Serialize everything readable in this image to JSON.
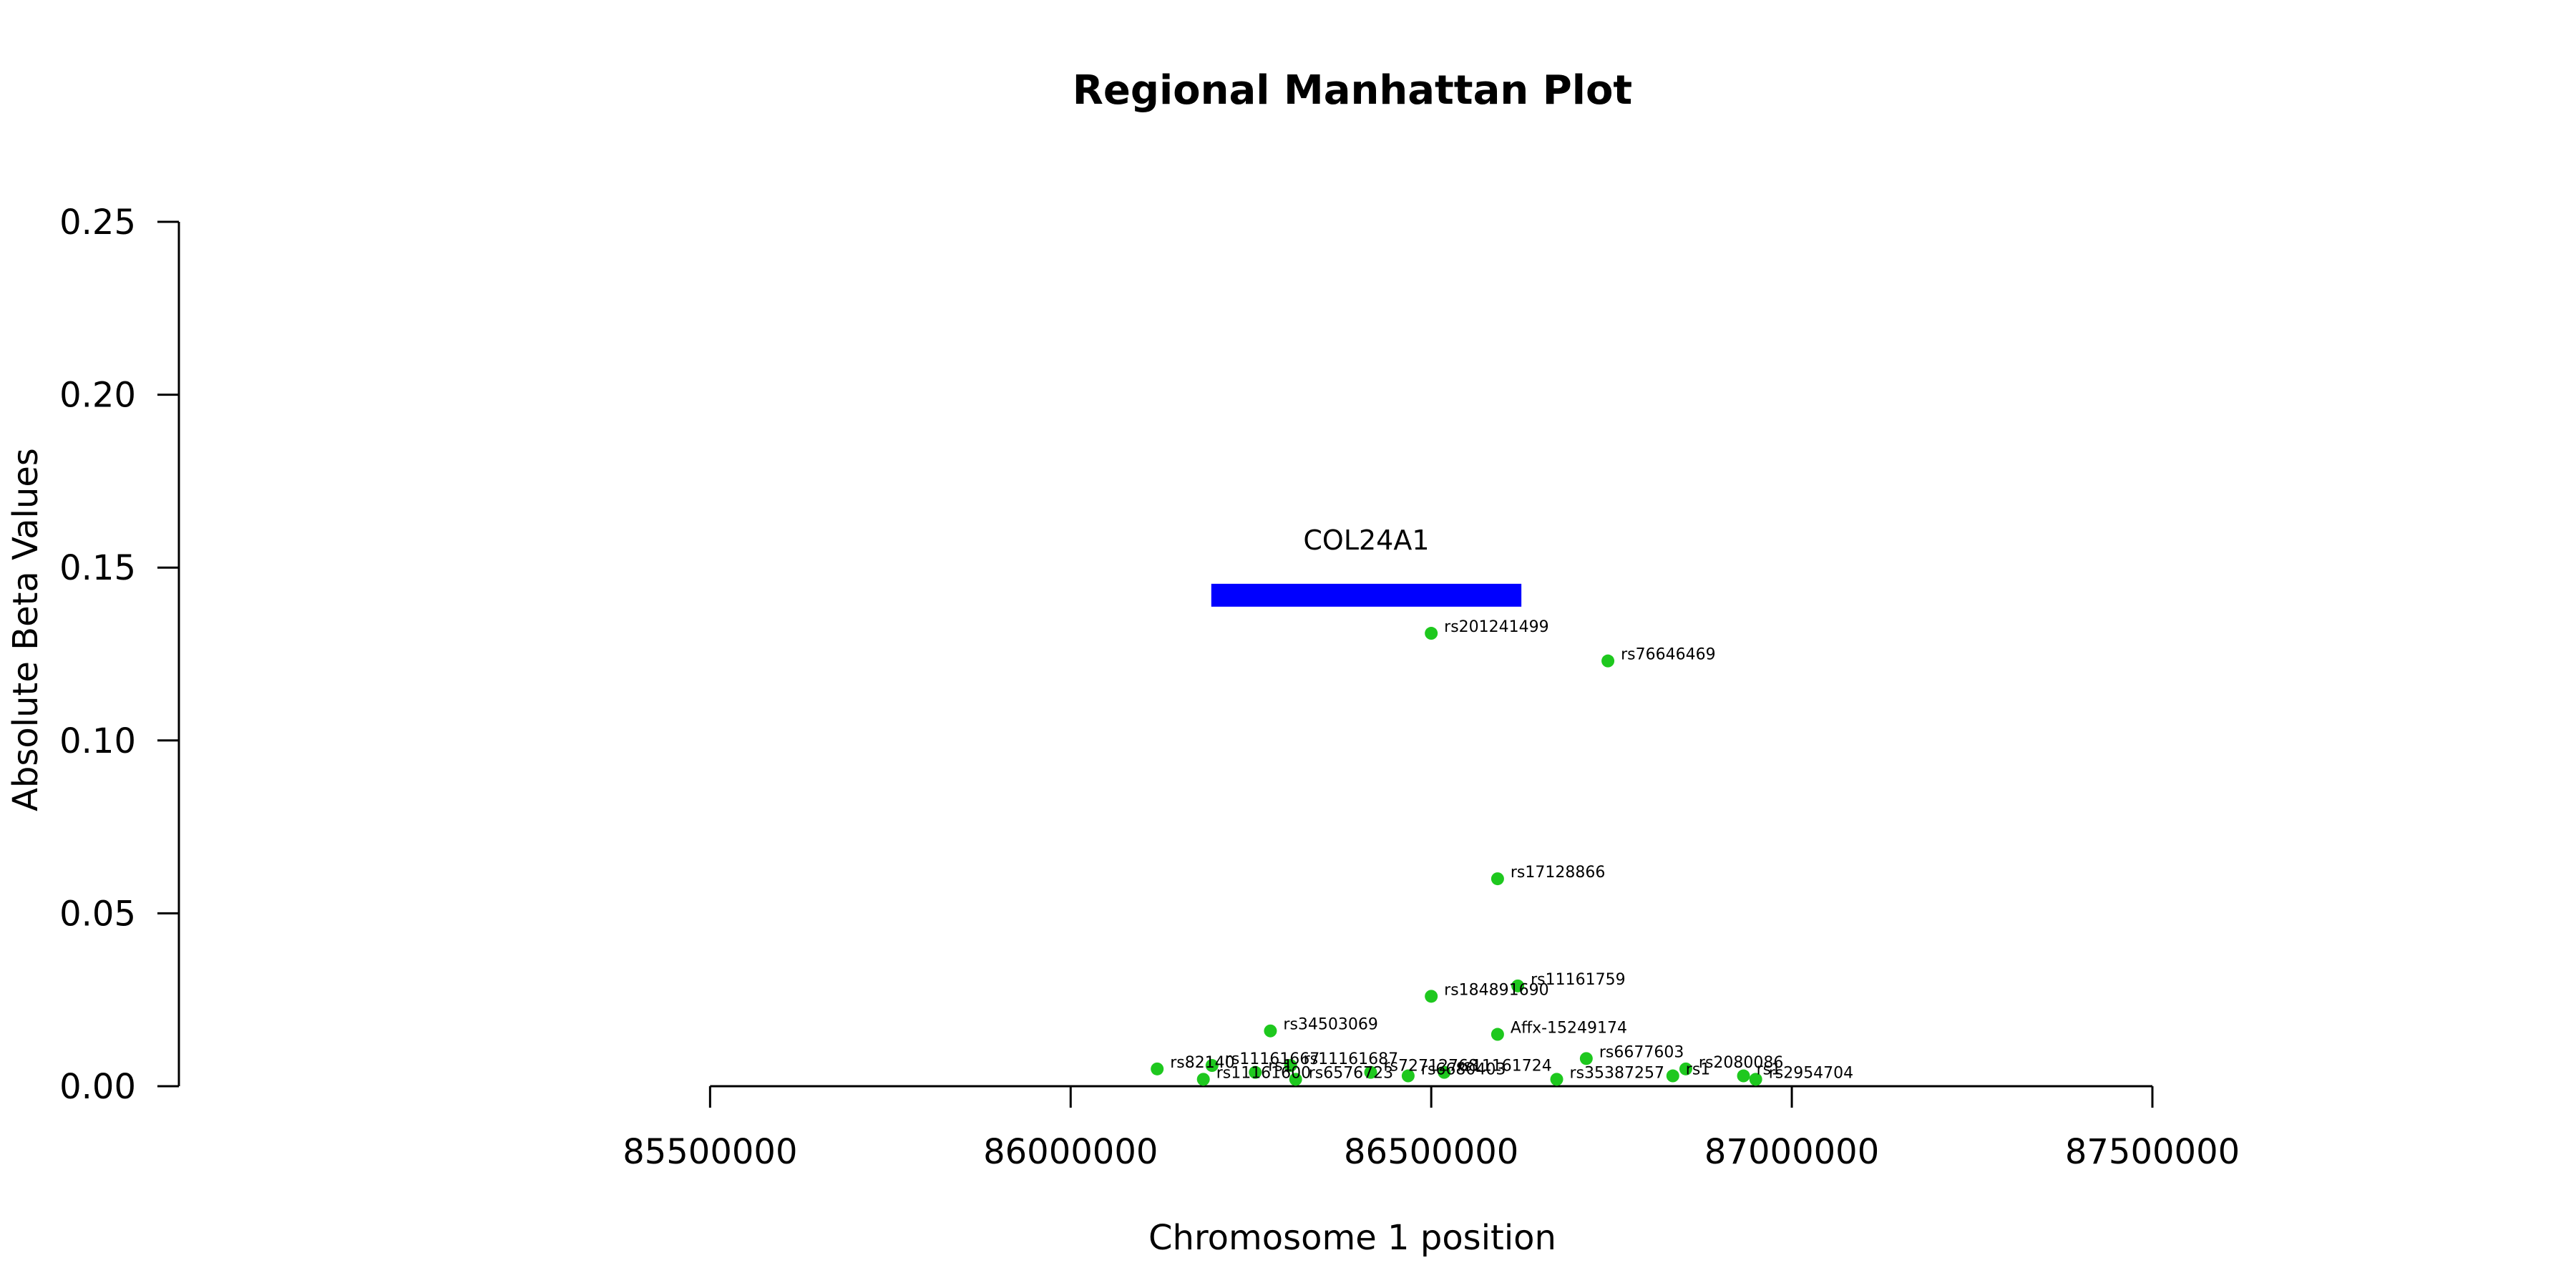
{
  "chart_data": {
    "type": "scatter",
    "title": "Regional Manhattan Plot",
    "xlabel": "Chromosome 1 position",
    "ylabel": "Absolute Beta Values",
    "xlim": [
      85200000,
      87500000
    ],
    "ylim": [
      0,
      0.25
    ],
    "x_ticks": [
      85500000,
      86000000,
      86500000,
      87000000,
      87500000
    ],
    "x_tick_labels": [
      "85500000",
      "86000000",
      "86500000",
      "87000000",
      "87500000"
    ],
    "y_ticks": [
      0,
      0.05,
      0.1,
      0.15,
      0.2,
      0.25
    ],
    "y_tick_labels": [
      "0.00",
      "0.05",
      "0.10",
      "0.15",
      "0.20",
      "0.25"
    ],
    "grid": false,
    "point_color": "#1ec81e",
    "gene": {
      "name": "COL24A1",
      "start": 86195000,
      "end": 86625000,
      "y": 0.142,
      "color": "#0000ff"
    },
    "points": [
      {
        "label": "rs201241499",
        "x": 86500000,
        "y": 0.131
      },
      {
        "label": "rs76646469",
        "x": 86745000,
        "y": 0.123
      },
      {
        "label": "rs17128866",
        "x": 86592000,
        "y": 0.06
      },
      {
        "label": "rs11161759",
        "x": 86620000,
        "y": 0.029
      },
      {
        "label": "rs184891690",
        "x": 86500000,
        "y": 0.026
      },
      {
        "label": "rs34503069",
        "x": 86277000,
        "y": 0.016
      },
      {
        "label": "Affx-15249174",
        "x": 86592000,
        "y": 0.015
      },
      {
        "label": "rs6677603",
        "x": 86715000,
        "y": 0.008
      },
      {
        "label": "rs82140",
        "x": 86120000,
        "y": 0.005
      },
      {
        "label": "rs11161667",
        "x": 86196000,
        "y": 0.006
      },
      {
        "label": "rs11161687",
        "x": 86305000,
        "y": 0.006
      },
      {
        "label": "rs11161600",
        "x": 86184000,
        "y": 0.002
      },
      {
        "label": "rs1",
        "x": 86256000,
        "y": 0.004
      },
      {
        "label": "rs6576723",
        "x": 86312000,
        "y": 0.002
      },
      {
        "label": "rs72712768",
        "x": 86416000,
        "y": 0.004
      },
      {
        "label": "rs11161724",
        "x": 86518000,
        "y": 0.004
      },
      {
        "label": "rs6680403",
        "x": 86468000,
        "y": 0.003
      },
      {
        "label": "rs35387257",
        "x": 86674000,
        "y": 0.002
      },
      {
        "label": "rs1",
        "x": 86835000,
        "y": 0.003
      },
      {
        "label": "rs2080086",
        "x": 86853000,
        "y": 0.005
      },
      {
        "label": "rs1",
        "x": 86933000,
        "y": 0.003
      },
      {
        "label": "rs2954704",
        "x": 86950000,
        "y": 0.002
      }
    ]
  }
}
